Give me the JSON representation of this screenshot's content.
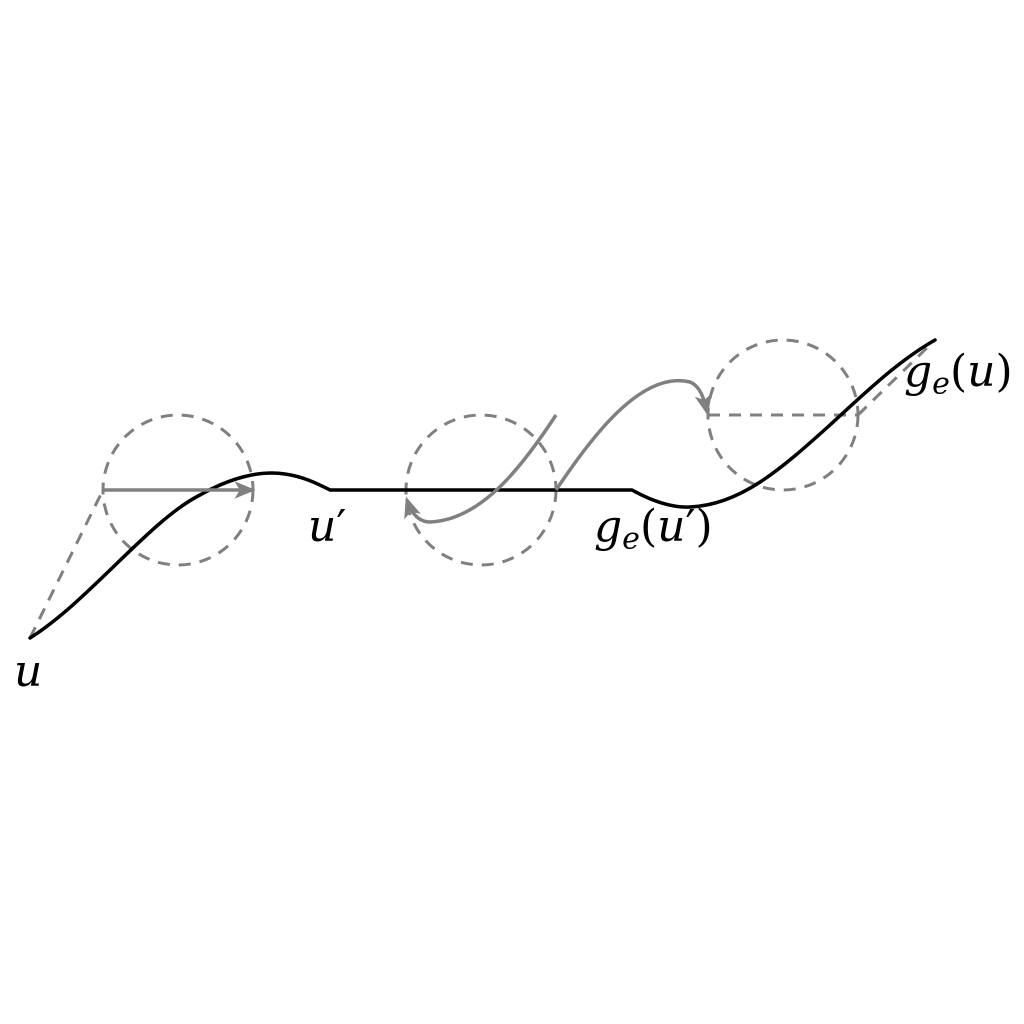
{
  "labels": {
    "u": {
      "base": "u"
    },
    "u_prime": {
      "base": "u",
      "prime": "′"
    },
    "ge_u_prime": {
      "func": "g",
      "sub": "e",
      "open": "(",
      "arg": "u",
      "prime": "′",
      "close": ")"
    },
    "ge_u": {
      "func": "g",
      "sub": "e",
      "open": "(",
      "arg": "u",
      "close": ")"
    }
  },
  "colors": {
    "path": "#000000",
    "arrow": "#808080",
    "dashed": "#808080"
  }
}
